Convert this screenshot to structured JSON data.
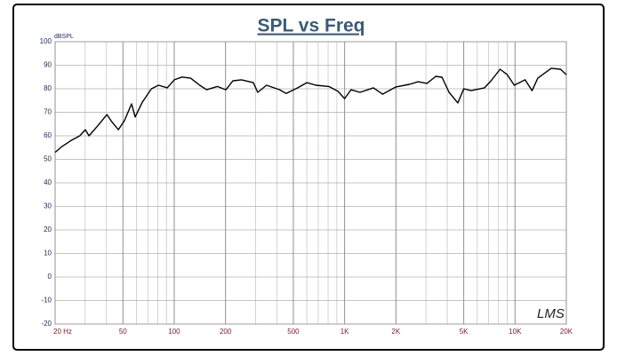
{
  "chart_data": {
    "type": "line",
    "title": "SPL vs Freq",
    "y_label": "dBSPL",
    "annotation": "LMS",
    "x_scale": "log",
    "grid": true,
    "xlim": [
      20,
      20000
    ],
    "ylim": [
      -20,
      100
    ],
    "yticks": [
      -20,
      -10,
      0,
      10,
      20,
      30,
      40,
      50,
      60,
      70,
      80,
      90,
      100
    ],
    "xticks": [
      {
        "value": 20,
        "label": "20 Hz"
      },
      50,
      100,
      200,
      500,
      {
        "value": 1000,
        "label": "1K"
      },
      {
        "value": 2000,
        "label": "2K"
      },
      {
        "value": 5000,
        "label": "5K"
      },
      {
        "value": 10000,
        "label": "10K"
      },
      {
        "value": 20000,
        "label": "20K"
      }
    ],
    "x_minor_ticks": [
      30,
      40,
      60,
      70,
      80,
      90,
      300,
      400,
      600,
      700,
      800,
      900,
      3000,
      4000,
      6000,
      7000,
      8000,
      9000
    ],
    "x": [
      20,
      22,
      24.8,
      27.9,
      30.1,
      31.6,
      35.3,
      40.3,
      43,
      47,
      51,
      56.2,
      59,
      65,
      73.5,
      81,
      91,
      100,
      111,
      125,
      141,
      155,
      179,
      201,
      221,
      248,
      291,
      309,
      348,
      416,
      454,
      531,
      600,
      678,
      808,
      915,
      1000,
      1090,
      1230,
      1475,
      1670,
      2000,
      2400,
      2700,
      3040,
      3430,
      3730,
      4100,
      4620,
      5000,
      5520,
      6620,
      7230,
      8170,
      9000,
      9900,
      11450,
      12600,
      13600,
      16300,
      18500,
      20000
    ],
    "series": [
      {
        "name": "SPL",
        "color": "#000000",
        "values": [
          53,
          55.5,
          58,
          60,
          62.6,
          60,
          64,
          69,
          66,
          62.6,
          66.4,
          73.6,
          68,
          74.3,
          80,
          81.5,
          80.4,
          83.8,
          85,
          84.5,
          81.5,
          79.6,
          81,
          79.6,
          83.4,
          83.8,
          82.6,
          78.5,
          81.5,
          79.6,
          78,
          80.4,
          82.6,
          81.5,
          81,
          78.9,
          75.8,
          79.6,
          78.5,
          80.4,
          77.7,
          80.8,
          81.9,
          83,
          82.3,
          85.3,
          84.9,
          78.5,
          74,
          80,
          79.2,
          80.4,
          83.4,
          88.3,
          86,
          81.5,
          83.8,
          79.2,
          84.5,
          88.7,
          88.3,
          86
        ]
      }
    ]
  }
}
